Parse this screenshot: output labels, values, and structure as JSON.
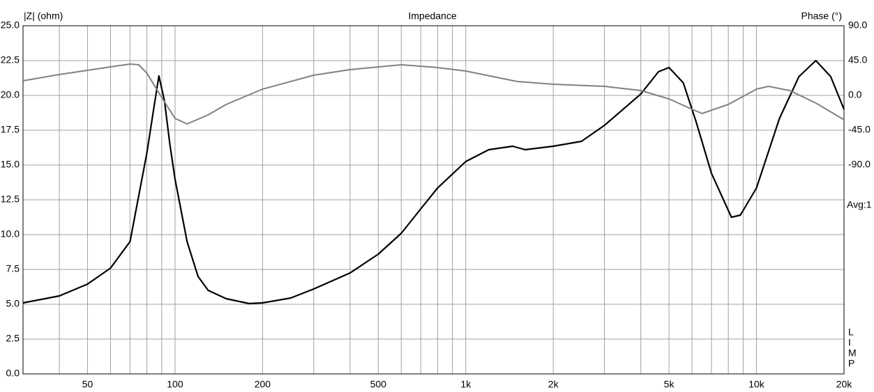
{
  "chart_data": {
    "type": "line",
    "title": "Impedance",
    "ylabel": "|Z| (ohm)",
    "y2label": "Phase (°)",
    "xscale": "log",
    "grid": true,
    "xlim": [
      30,
      20000
    ],
    "xticks": [
      50,
      100,
      200,
      500,
      {
        "value": 1000,
        "label": "1k"
      },
      {
        "value": 2000,
        "label": "2k"
      },
      {
        "value": 5000,
        "label": "5k"
      },
      {
        "value": 10000,
        "label": "10k"
      },
      {
        "value": 20000,
        "label": "20k"
      }
    ],
    "xminor_ticks": [
      40,
      60,
      70,
      80,
      90,
      300,
      400,
      600,
      700,
      800,
      900,
      3000,
      4000,
      6000,
      7000,
      8000,
      9000
    ],
    "ylim": [
      0,
      25
    ],
    "yticks": [
      {
        "value": 0,
        "label": "0.0"
      },
      2.5,
      {
        "value": 5,
        "label": "5.0"
      },
      7.5,
      {
        "value": 10,
        "label": "10.0"
      },
      12.5,
      {
        "value": 15,
        "label": "15.0"
      },
      17.5,
      {
        "value": 20,
        "label": "20.0"
      },
      22.5,
      {
        "value": 25,
        "label": "25.0"
      }
    ],
    "y2lim": [
      -360,
      90
    ],
    "y2ticks": [
      {
        "value": 90,
        "label": "90.0"
      },
      {
        "value": 45,
        "label": "45.0"
      },
      {
        "value": 0,
        "label": "0.0"
      },
      {
        "value": -45,
        "label": "-45.0"
      },
      {
        "value": -90,
        "label": "-90.0"
      }
    ],
    "annotation": "Avg:1",
    "corner_letters": [
      "L",
      "I",
      "M",
      "P"
    ],
    "series": [
      {
        "name": "Impedance",
        "color": "#000000",
        "x": [
          30,
          40,
          50,
          60,
          70,
          80,
          85,
          88,
          92,
          96,
          100,
          110,
          120,
          130,
          150,
          180,
          200,
          250,
          300,
          400,
          500,
          600,
          700,
          800,
          1000,
          1200,
          1450,
          1600,
          2000,
          2500,
          3000,
          4000,
          4600,
          5000,
          5600,
          6200,
          7000,
          8200,
          8800,
          10000,
          12000,
          14000,
          16000,
          18000,
          20000
        ],
        "values": [
          5.1,
          5.6,
          6.45,
          7.6,
          9.5,
          15.85,
          19.4,
          21.4,
          19.6,
          16.5,
          14.0,
          9.5,
          7.0,
          6.0,
          5.4,
          5.05,
          5.1,
          5.45,
          6.1,
          7.25,
          8.6,
          10.1,
          11.85,
          13.35,
          15.25,
          16.1,
          16.35,
          16.1,
          16.35,
          16.7,
          17.85,
          20.1,
          21.7,
          22.0,
          20.9,
          18.1,
          14.4,
          11.25,
          11.4,
          13.35,
          18.35,
          21.35,
          22.5,
          21.35,
          19.0
        ]
      },
      {
        "name": "Phase",
        "color": "#808080",
        "axis": "y2",
        "x": [
          30,
          40,
          50,
          60,
          70,
          75,
          80,
          90,
          100,
          110,
          130,
          150,
          200,
          300,
          400,
          600,
          800,
          1000,
          1500,
          2000,
          3000,
          4000,
          5000,
          6000,
          6500,
          8000,
          10000,
          11000,
          13000,
          16000,
          20000
        ],
        "values": [
          18.9,
          27,
          32.4,
          36.9,
          40.5,
          39.6,
          28.8,
          -2.7,
          -29.7,
          -36.9,
          -25.2,
          -11.7,
          8.1,
          26.1,
          33.3,
          39.6,
          36,
          31.5,
          18,
          14.4,
          11.7,
          6.3,
          -4.5,
          -18,
          -23.4,
          -11.7,
          8.1,
          11.7,
          6.3,
          -9.9,
          -31.5
        ]
      }
    ]
  }
}
